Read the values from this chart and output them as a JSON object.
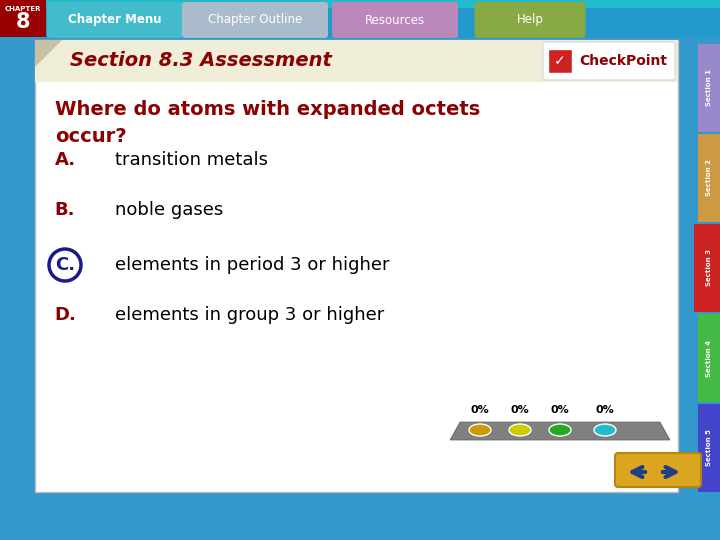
{
  "title": "Section 8.3 Assessment",
  "question": "Where do atoms with expanded octets\noccur?",
  "options": [
    {
      "letter": "A.",
      "text": "transition metals",
      "circled": false
    },
    {
      "letter": "B.",
      "text": "noble gases",
      "circled": false
    },
    {
      "letter": "C.",
      "text": "elements in period 3 or higher",
      "circled": true
    },
    {
      "letter": "D.",
      "text": "elements in group 3 or higher",
      "circled": false
    }
  ],
  "title_color": "#8B0000",
  "question_color": "#8B0000",
  "letter_color": "#8B0000",
  "answer_color": "#000000",
  "circle_color": "#1a1a8c",
  "bg_color": "#FFFFFF",
  "outer_bg": "#3399CC",
  "header_bg": "#2288BB",
  "nav_bar_color": "#44AACC",
  "chapter_box_color": "#990000",
  "nav_labels": [
    "Chapter Menu",
    "Chapter Outline",
    "Resources",
    "Help"
  ],
  "nav_colors": [
    "#44BBCC",
    "#88BBDD",
    "#CC88BB",
    "#88BB44"
  ],
  "section_tabs": [
    "Section 1",
    "Section 2",
    "Section 3",
    "Section 4",
    "Section 5"
  ],
  "section_tab_colors": [
    "#9988CC",
    "#CC9944",
    "#CC2222",
    "#44BB44",
    "#4444CC"
  ],
  "progress_colors": [
    "#CC9900",
    "#CCCC00",
    "#22AA22",
    "#22BBCC"
  ],
  "percent_labels": [
    "0%",
    "0%",
    "0%",
    "0%"
  ],
  "chapter_num": "8"
}
